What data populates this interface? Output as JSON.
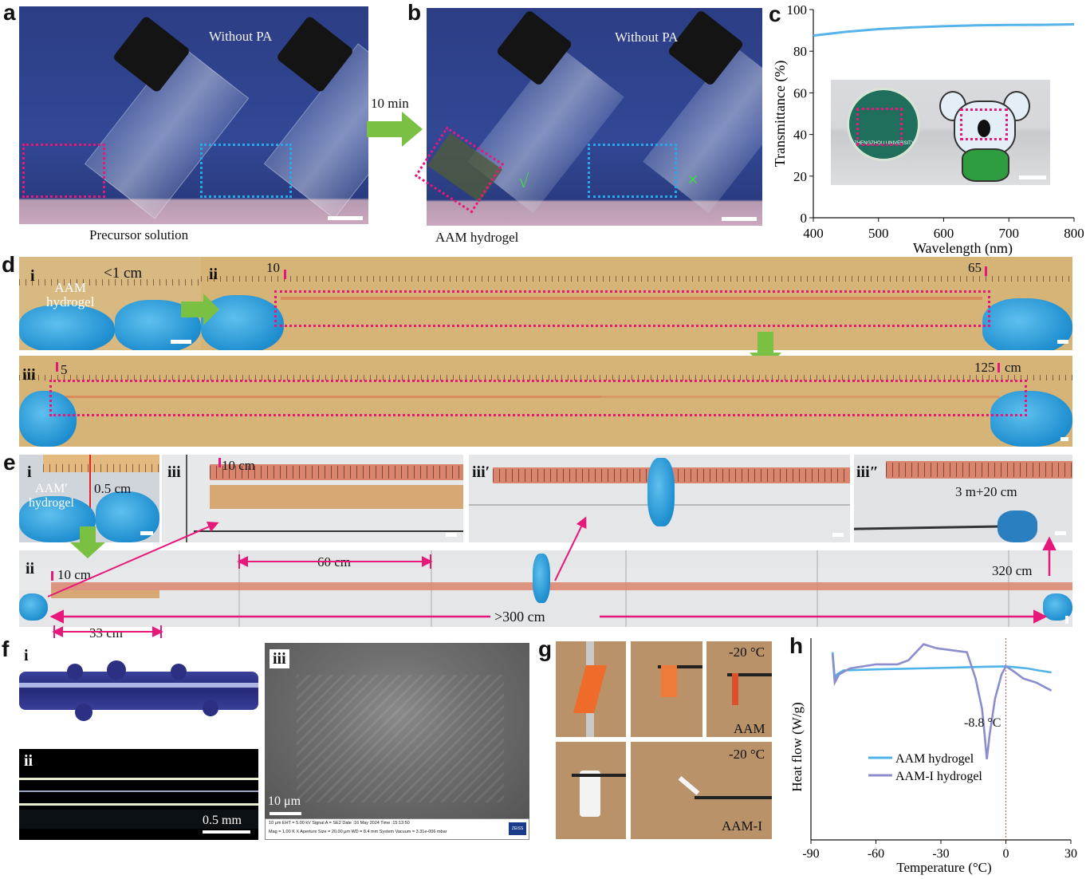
{
  "panels": {
    "a": {
      "label": "a",
      "without_pa": "Without PA",
      "caption": "Precursor solution"
    },
    "b": {
      "label": "b",
      "without_pa": "Without PA",
      "caption": "AAM hydrogel",
      "arrow_text": "10 min",
      "check": "√",
      "cross": "×"
    },
    "c": {
      "label": "c",
      "inset_seal_text": "ZHENGZHOU UNIVERSITY"
    },
    "d": {
      "label": "d",
      "i": "i",
      "ii": "ii",
      "iii": "iii",
      "less_1cm": "<1 cm",
      "aam_hydrogel": "AAM\nhydrogel",
      "ii_start": "10",
      "ii_end": "65",
      "iii_start": "5",
      "iii_end": "125",
      "iii_unit": "cm"
    },
    "e": {
      "label": "e",
      "i": "i",
      "ii": "ii",
      "iii": "iii",
      "iii_p": "iii′",
      "iii_pp": "iii″",
      "aam_prime": "AAM′\nhydrogel",
      "half_cm": "0.5 cm",
      "iii_10cm": "10 cm",
      "iii_pp_text": "3 m+20 cm",
      "ii_10cm": "10 cm",
      "ii_60cm": "60 cm",
      "ii_320cm": "320 cm",
      "ii_300cm": ">300 cm",
      "ii_33cm": "33 cm"
    },
    "f": {
      "label": "f",
      "i": "i",
      "ii": "ii",
      "iii": "iii",
      "scale_ii": "0.5  mm",
      "scale_iii": "10 μm",
      "sem_footer_1": "10 μm        EHT = 5.00 kV     Signal A = SE2      Date :16 May 2024  Time :15:13:50",
      "sem_footer_2": "Mag = 1.00 K X    Aperture Size = 20.00 μm   WD = 8.4 mm     System Vacuum = 3.31e-006 mbar",
      "sem_brand": "ZEISS"
    },
    "g": {
      "label": "g",
      "temp1": "-20 °C",
      "temp2": "-20 °C",
      "aam": "AAM",
      "aami": "AAM-I"
    },
    "h": {
      "label": "h",
      "annotation": "-8.8 °C"
    }
  },
  "chart_data": [
    {
      "panel": "c",
      "type": "line",
      "xlabel": "Wavelength (nm)",
      "ylabel": "Transmittance (%)",
      "xlim": [
        400,
        800
      ],
      "ylim": [
        0,
        100
      ],
      "xticks": [
        400,
        500,
        600,
        700,
        800
      ],
      "yticks": [
        0,
        20,
        40,
        60,
        80,
        100
      ],
      "grid": false,
      "series": [
        {
          "color": "#56b4e9",
          "x": [
            400,
            450,
            500,
            550,
            600,
            650,
            700,
            750,
            800
          ],
          "y": [
            87.5,
            89.3,
            90.6,
            91.4,
            92.0,
            92.4,
            92.6,
            92.7,
            92.9
          ]
        }
      ]
    },
    {
      "panel": "h",
      "type": "line",
      "xlabel": "Temperature (°C)",
      "ylabel": "Heat flow (W/g)",
      "xlim": [
        -90,
        30
      ],
      "xticks": [
        -90,
        -60,
        -30,
        0,
        30
      ],
      "legend": "lower-left",
      "grid": false,
      "series": [
        {
          "name": "AAM hydrogel",
          "color": "#4fb3e8",
          "x": [
            -80,
            -79,
            -78,
            -75,
            -60,
            -40,
            -20,
            -10,
            0,
            5,
            10,
            15,
            21
          ],
          "y": [
            0.93,
            0.8,
            0.82,
            0.84,
            0.845,
            0.85,
            0.855,
            0.858,
            0.86,
            0.855,
            0.85,
            0.84,
            0.83
          ]
        },
        {
          "name": "AAM-I hydrogel",
          "color": "#8b8dcc",
          "x": [
            -80,
            -79,
            -77,
            -72,
            -60,
            -50,
            -45,
            -38,
            -32,
            -25,
            -18,
            -14,
            -11,
            -9.8,
            -8.8,
            -7.5,
            -5,
            -2,
            0,
            3,
            8,
            14,
            21
          ],
          "y": [
            0.92,
            0.78,
            0.82,
            0.85,
            0.87,
            0.87,
            0.89,
            0.97,
            0.95,
            0.94,
            0.93,
            0.8,
            0.65,
            0.52,
            0.4,
            0.52,
            0.7,
            0.82,
            0.86,
            0.84,
            0.8,
            0.78,
            0.74
          ]
        }
      ]
    }
  ]
}
